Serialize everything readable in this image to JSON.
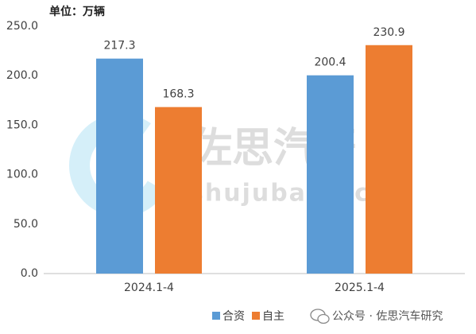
{
  "chart_data": {
    "type": "bar",
    "title": "单位：万辆",
    "categories": [
      "2024.1-4",
      "2025.1-4"
    ],
    "series": [
      {
        "name": "合资",
        "color": "#5b9bd5",
        "values": [
          217.3,
          200.4
        ]
      },
      {
        "name": "自主",
        "color": "#ed7d31",
        "values": [
          168.3,
          230.9
        ]
      }
    ],
    "ylim": [
      0,
      250
    ],
    "yticks": [
      {
        "value": 0,
        "label": "0.0"
      },
      {
        "value": 50,
        "label": "50.0"
      },
      {
        "value": 100,
        "label": "100.0"
      },
      {
        "value": 150,
        "label": "150.0"
      },
      {
        "value": 200,
        "label": "200.0"
      },
      {
        "value": 250,
        "label": "250.0"
      }
    ],
    "grid": false,
    "legend": "bottom",
    "watermark": [
      "佐思汽研",
      "shujubang.com"
    ],
    "source": "公众号 · 佐思汽车研究"
  }
}
